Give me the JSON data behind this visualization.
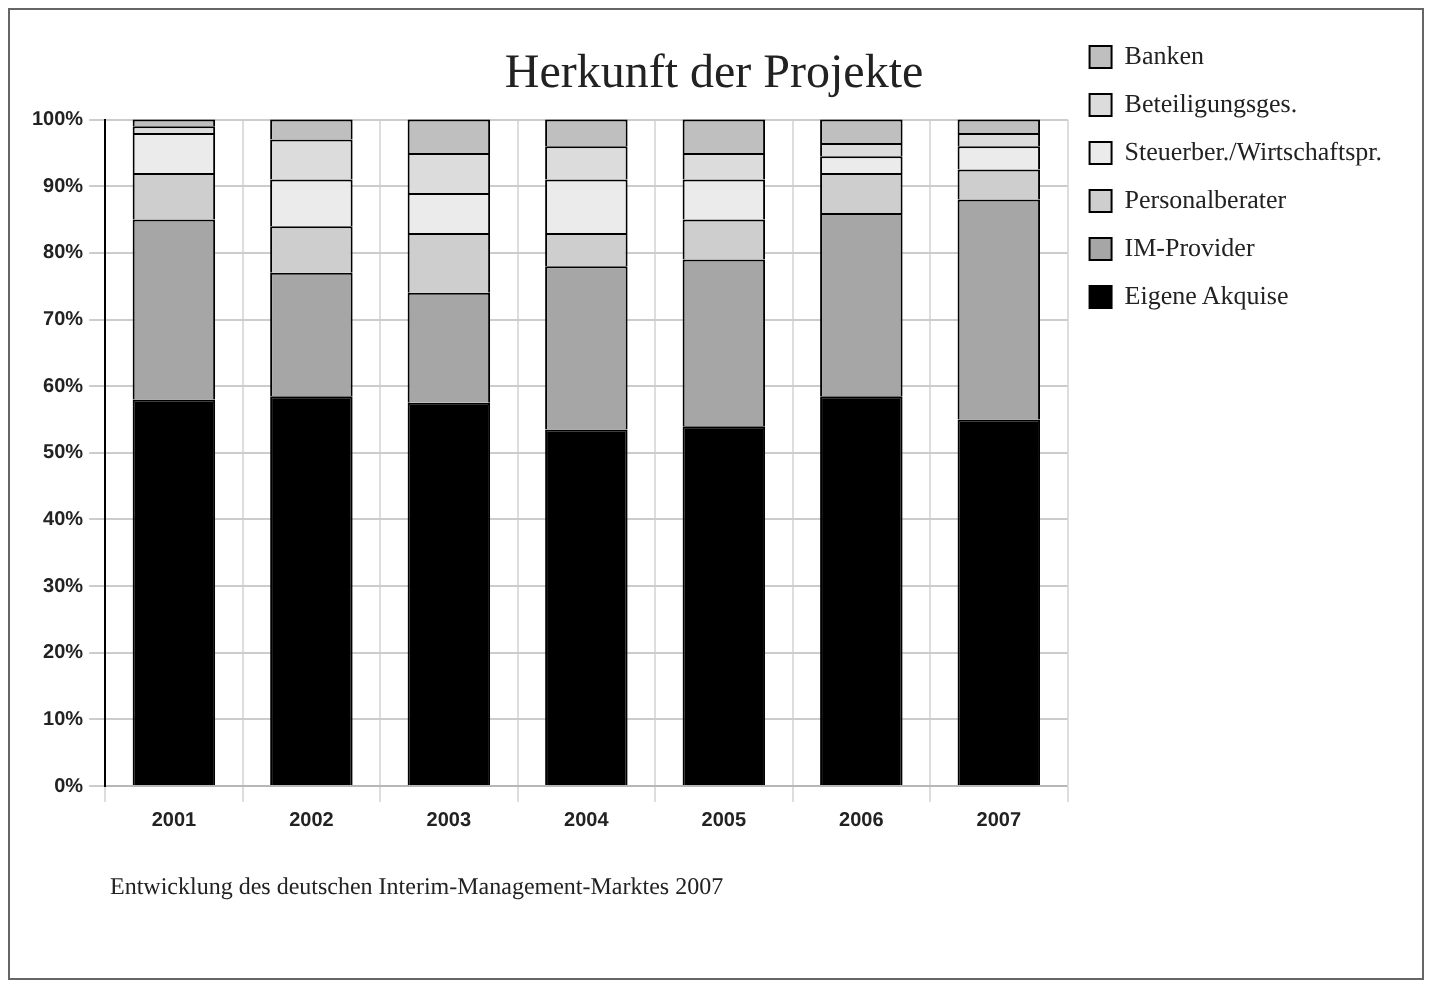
{
  "chart_data": {
    "type": "bar",
    "title": "Herkunft der Projekte",
    "stacked": true,
    "categories": [
      "2001",
      "2002",
      "2003",
      "2004",
      "2005",
      "2006",
      "2007"
    ],
    "series": [
      {
        "name": "Eigene Akquise",
        "color": "#000000",
        "values": [
          58,
          58.5,
          57.5,
          53.5,
          54,
          58.5,
          55
        ]
      },
      {
        "name": "IM-Provider",
        "color": "#a6a6a6",
        "values": [
          27,
          18.5,
          16.5,
          24.5,
          25,
          27.5,
          33
        ]
      },
      {
        "name": "Personalberater",
        "color": "#cecece",
        "values": [
          7,
          7,
          9,
          5,
          6,
          6,
          4.5
        ]
      },
      {
        "name": "Steuerber./Wirtschaftspr.",
        "color": "#ebebeb",
        "values": [
          6,
          7,
          6,
          8,
          6,
          2.5,
          3.5
        ]
      },
      {
        "name": "Beteiligungsges.",
        "color": "#dcdcdc",
        "values": [
          1,
          6,
          6,
          5,
          4,
          2,
          2
        ]
      },
      {
        "name": "Banken",
        "color": "#bfbfbf",
        "values": [
          1,
          3,
          5,
          4,
          5,
          3.5,
          2
        ]
      }
    ],
    "ylim": [
      0,
      100
    ],
    "yticks": [
      {
        "value": 0,
        "label": "0%"
      },
      {
        "value": 10,
        "label": "10%"
      },
      {
        "value": 20,
        "label": "20%"
      },
      {
        "value": 30,
        "label": "30%"
      },
      {
        "value": 40,
        "label": "40%"
      },
      {
        "value": 50,
        "label": "50%"
      },
      {
        "value": 60,
        "label": "60%"
      },
      {
        "value": 70,
        "label": "70%"
      },
      {
        "value": 80,
        "label": "80%"
      },
      {
        "value": 90,
        "label": "90%"
      },
      {
        "value": 100,
        "label": "100%"
      }
    ],
    "grid": true,
    "legend": "right",
    "annotations": [
      "Entwicklung des deutschen Interim-Management-Marktes 2007"
    ]
  }
}
